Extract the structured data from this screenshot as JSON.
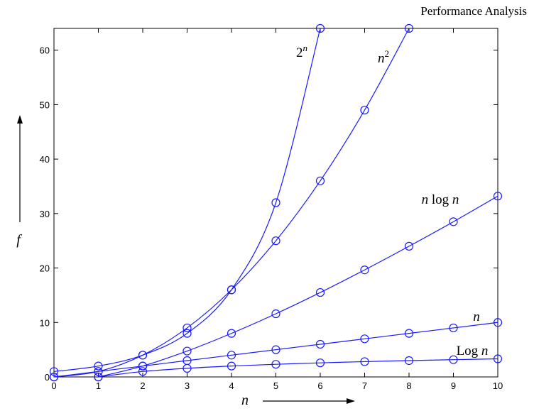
{
  "chart_data": {
    "type": "line",
    "title": "Performance Analysis",
    "xlabel": "n",
    "ylabel": "f",
    "xlim": [
      0,
      10
    ],
    "ylim": [
      0,
      64
    ],
    "xticks": [
      "0",
      "1",
      "2",
      "3",
      "4",
      "5",
      "6",
      "7",
      "8",
      "9",
      "10"
    ],
    "yticks": [
      "0",
      "10",
      "20",
      "30",
      "40",
      "50",
      "60"
    ],
    "grid": false,
    "line_color": "#1a1aff",
    "series": [
      {
        "name": "2",
        "sup": "n",
        "x": [
          0,
          1,
          2,
          3,
          4,
          5,
          6
        ],
        "y": [
          1,
          2,
          4,
          8,
          16,
          32,
          64
        ]
      },
      {
        "name": "n",
        "sup": "2",
        "x": [
          0,
          1,
          2,
          3,
          4,
          5,
          6,
          7,
          8
        ],
        "y": [
          0,
          1,
          4,
          9,
          16,
          25,
          36,
          49,
          64
        ]
      },
      {
        "name": "n log n",
        "sup": "",
        "x": [
          1,
          2,
          3,
          4,
          5,
          6,
          7,
          8,
          9,
          10
        ],
        "y": [
          0,
          2,
          4.75,
          8,
          11.6,
          15.5,
          19.65,
          24,
          28.5,
          33.2
        ]
      },
      {
        "name": "n",
        "sup": "",
        "x": [
          0,
          1,
          2,
          3,
          4,
          5,
          6,
          7,
          8,
          9,
          10
        ],
        "y": [
          0,
          1,
          2,
          3,
          4,
          5,
          6,
          7,
          8,
          9,
          10
        ]
      },
      {
        "name": "Log n",
        "sup": "",
        "x": [
          1,
          2,
          3,
          4,
          5,
          6,
          7,
          8,
          9,
          10
        ],
        "y": [
          0,
          1,
          1.58,
          2,
          2.32,
          2.58,
          2.81,
          3,
          3.17,
          3.32
        ]
      }
    ]
  }
}
